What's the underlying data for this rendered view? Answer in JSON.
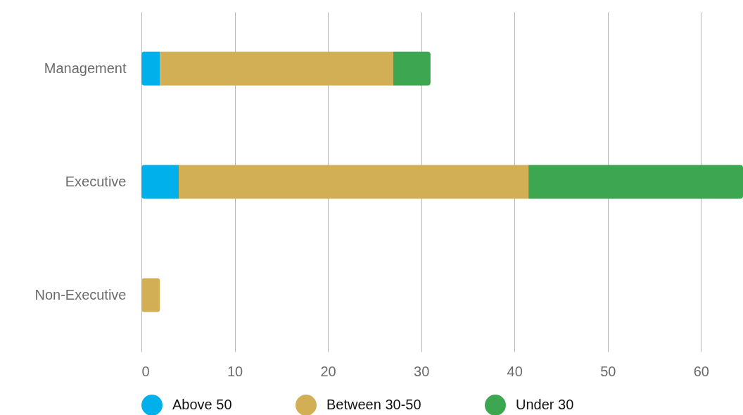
{
  "chart_data": {
    "type": "bar",
    "orientation": "horizontal",
    "stacked": true,
    "categories": [
      "Management",
      "Executive",
      "Non-Executive"
    ],
    "series": [
      {
        "name": "Above 50",
        "color": "#00b0ea",
        "values": [
          2,
          4,
          0
        ]
      },
      {
        "name": "Between 30-50",
        "color": "#d2ae55",
        "values": [
          25,
          37.5,
          2
        ]
      },
      {
        "name": "Under 30",
        "color": "#3da650",
        "values": [
          4,
          23,
          0
        ]
      }
    ],
    "xlim": [
      0,
      64.5
    ],
    "xticks": [
      0,
      10,
      20,
      30,
      40,
      50,
      60
    ],
    "grid": "x",
    "legend": "bottom"
  }
}
